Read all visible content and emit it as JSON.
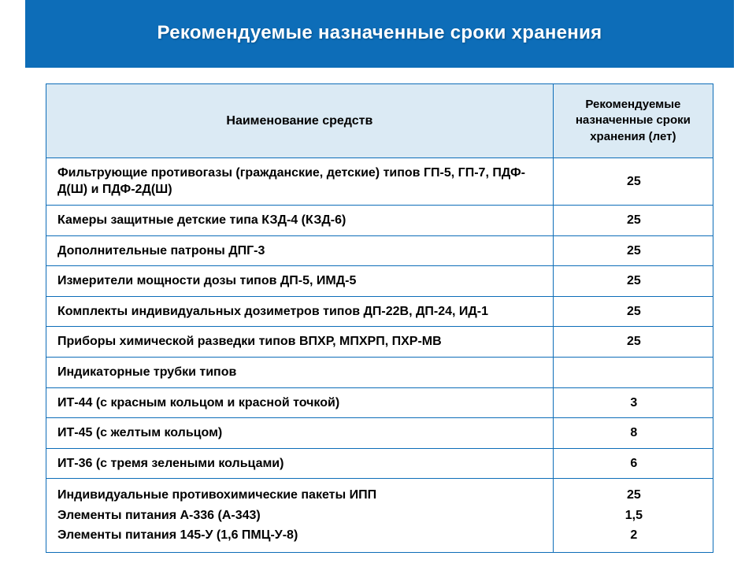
{
  "title": "Рекомендуемые назначенные сроки хранения",
  "table": {
    "header": {
      "name": "Наименование средств",
      "term": "Рекомендуемые назначенные сроки хранения (лет)"
    },
    "header_bg": "#dbeaf4",
    "border_color": "#0d6db8",
    "banner_bg": "#0d6db8",
    "banner_text_color": "#ffffff",
    "text_color": "#000000",
    "font_family": "Arial",
    "title_fontsize": 24,
    "cell_fontsize": 16,
    "col_widths_pct": [
      76,
      24
    ],
    "rows": [
      {
        "name": "Фильтрующие противогазы (гражданские, детские)  типов          ГП-5, ГП-7, ПДФ-Д(Ш) и ПДФ-2Д(Ш)",
        "term": "25"
      },
      {
        "name": "Камеры защитные детские типа КЗД-4 (КЗД-6)",
        "term": "25"
      },
      {
        "name": "Дополнительные патроны ДПГ-3",
        "term": "25"
      },
      {
        "name": "Измерители мощности дозы типов ДП-5, ИМД-5",
        "term": "25"
      },
      {
        "name": "Комплекты индивидуальных дозиметров типов ДП-22В, ДП-24, ИД-1",
        "term": "25"
      },
      {
        "name": "Приборы химической разведки типов ВПХР, МПХРП, ПХР-МВ",
        "term": "25"
      },
      {
        "name": "Индикаторные трубки типов",
        "term": ""
      },
      {
        "name": "ИТ-44 (с красным кольцом и красной точкой)",
        "term": "3"
      },
      {
        "name": "ИТ-45 (с желтым кольцом)",
        "term": "8"
      },
      {
        "name": "ИТ-36 (с тремя зелеными кольцами)",
        "term": "6"
      }
    ],
    "last_row": {
      "names": [
        "Индивидуальные противохимические пакеты ИПП",
        "Элементы питания А-336 (А-343)",
        "Элементы питания 145-У (1,6 ПМЦ-У-8)"
      ],
      "terms": [
        "25",
        "1,5",
        "2"
      ]
    }
  }
}
